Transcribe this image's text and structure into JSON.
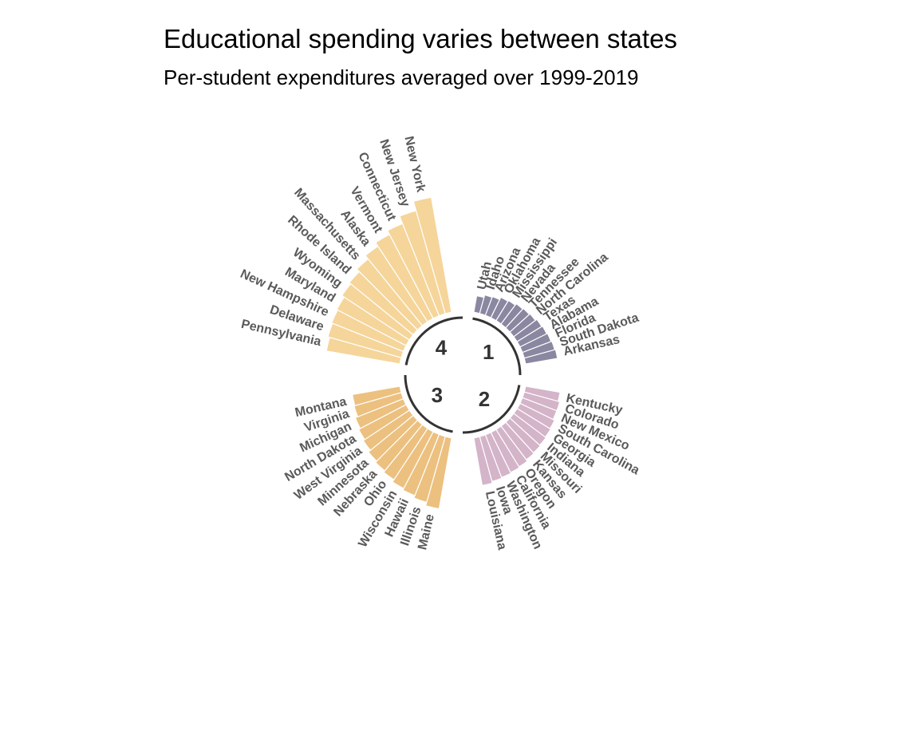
{
  "title": "Educational spending varies between states",
  "subtitle": "Per-student expenditures averaged over 1999-2019",
  "chart_data": {
    "type": "bar",
    "layout": "circular",
    "xlabel": "",
    "ylabel": "",
    "legend": "none",
    "grid": false,
    "colors": {
      "1": "#8a87a1",
      "2": "#d4b4c8",
      "3": "#ecc07f",
      "4": "#f5d59a",
      "arc": "#333333",
      "label": "#5a5a5a",
      "separator": "#ffffff"
    },
    "groups": [
      {
        "label": "1",
        "categories": [
          "Utah",
          "Idaho",
          "Arizona",
          "Oklahoma",
          "Mississippi",
          "Nevada",
          "Tennessee",
          "North Carolina",
          "Texas",
          "Alabama",
          "Florida",
          "South Dakota",
          "Arkansas"
        ],
        "values": [
          7.9,
          8.2,
          8.3,
          8.6,
          8.7,
          8.9,
          9.0,
          9.1,
          9.3,
          9.4,
          9.5,
          9.6,
          9.7
        ]
      },
      {
        "label": "2",
        "categories": [
          "Kentucky",
          "Colorado",
          "New Mexico",
          "South Carolina",
          "Georgia",
          "Indiana",
          "Missouri",
          "Kansas",
          "Oregon",
          "California",
          "Washington",
          "Iowa",
          "Louisiana"
        ],
        "values": [
          10.0,
          10.2,
          10.2,
          10.4,
          10.5,
          10.6,
          10.7,
          10.8,
          11.0,
          11.1,
          11.2,
          11.3,
          11.5
        ]
      },
      {
        "label": "3",
        "categories": [
          "Maine",
          "Illinois",
          "Hawaii",
          "Wisconsin",
          "Ohio",
          "Nebraska",
          "Minnesota",
          "West Virginia",
          "North Dakota",
          "Michigan",
          "Virginia",
          "Montana"
        ],
        "values": [
          14.2,
          13.8,
          13.5,
          13.3,
          13.0,
          12.8,
          12.6,
          12.3,
          12.1,
          11.9,
          11.6,
          11.5
        ]
      },
      {
        "label": "4",
        "categories": [
          "Pennsylvania",
          "Delaware",
          "New Hampshire",
          "Maryland",
          "Wyoming",
          "Rhode Island",
          "Massachusetts",
          "Alaska",
          "Vermont",
          "Connecticut",
          "New Jersey",
          "New York"
        ],
        "values": [
          14.5,
          14.7,
          14.8,
          14.9,
          15.2,
          15.4,
          15.8,
          16.3,
          16.8,
          17.3,
          18.2,
          19.3
        ]
      }
    ]
  }
}
